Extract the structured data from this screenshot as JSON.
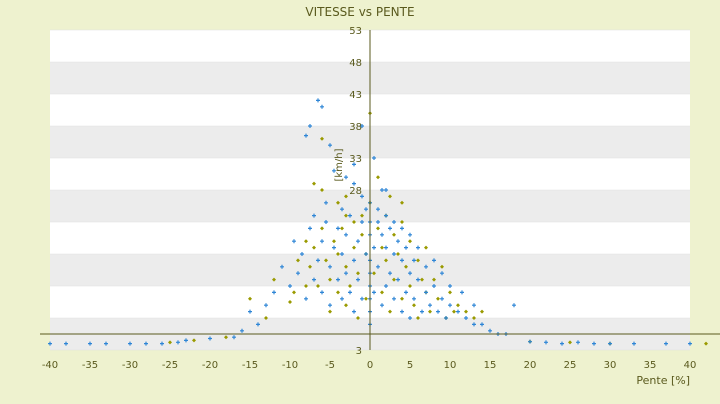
{
  "chart_data": {
    "type": "scatter",
    "title": "VITESSE vs PENTE",
    "xlabel": "Pente [%]",
    "ylabel": "[km/h]",
    "xlim": [
      -40,
      40
    ],
    "ylim": [
      3,
      53
    ],
    "x_ticks": [
      -40,
      -35,
      -30,
      -25,
      -20,
      -15,
      -10,
      -5,
      0,
      5,
      10,
      15,
      20,
      25,
      30,
      35,
      40
    ],
    "y_ticks": [
      3,
      8,
      13,
      18,
      23,
      28,
      33,
      38,
      43,
      48,
      53
    ],
    "y_tick_labels": [
      "3",
      "",
      "",
      "",
      "",
      "28",
      "33",
      "38",
      "43",
      "48",
      "53"
    ],
    "grid": "horizontal alternating bands",
    "series": [
      {
        "color": "#9a9a00",
        "marker": "diamond",
        "points": [
          [
            -12,
            14
          ],
          [
            -10,
            10.5
          ],
          [
            -9.5,
            12
          ],
          [
            -9,
            17
          ],
          [
            -8,
            13
          ],
          [
            -8,
            20
          ],
          [
            -7.5,
            16
          ],
          [
            -7,
            19
          ],
          [
            -6.5,
            13
          ],
          [
            -6,
            22
          ],
          [
            -6,
            36
          ],
          [
            -5.5,
            17
          ],
          [
            -5,
            9
          ],
          [
            -5,
            14
          ],
          [
            -4.5,
            20
          ],
          [
            -4,
            12
          ],
          [
            -4,
            18
          ],
          [
            -3.5,
            22
          ],
          [
            -3,
            10
          ],
          [
            -3,
            16
          ],
          [
            -3,
            24
          ],
          [
            -2.5,
            13
          ],
          [
            -2,
            19
          ],
          [
            -2,
            23
          ],
          [
            -1.5,
            8
          ],
          [
            -1.5,
            15
          ],
          [
            -1,
            21
          ],
          [
            -1,
            24
          ],
          [
            -0.5,
            11
          ],
          [
            -0.5,
            18
          ],
          [
            0,
            40
          ],
          [
            0,
            26
          ],
          [
            0.5,
            15
          ],
          [
            1,
            22
          ],
          [
            1,
            30
          ],
          [
            1.5,
            12
          ],
          [
            1.5,
            19
          ],
          [
            2,
            24
          ],
          [
            2,
            17
          ],
          [
            2.5,
            9
          ],
          [
            3,
            21
          ],
          [
            3,
            14
          ],
          [
            3.5,
            18
          ],
          [
            4,
            11
          ],
          [
            4,
            23
          ],
          [
            4.5,
            16
          ],
          [
            5,
            13
          ],
          [
            5,
            20
          ],
          [
            5.5,
            10
          ],
          [
            6,
            17
          ],
          [
            6,
            8
          ],
          [
            6.5,
            14
          ],
          [
            7,
            12
          ],
          [
            7,
            19
          ],
          [
            7.5,
            9
          ],
          [
            8,
            14
          ],
          [
            8.5,
            11
          ],
          [
            9,
            16
          ],
          [
            9.5,
            8
          ],
          [
            10,
            12
          ],
          [
            10.5,
            9
          ],
          [
            11,
            10
          ],
          [
            12,
            9
          ],
          [
            13,
            8
          ],
          [
            14,
            9
          ],
          [
            -15,
            11
          ],
          [
            -13,
            8
          ],
          [
            -18,
            5
          ],
          [
            -22,
            4.5
          ],
          [
            -25,
            4.2
          ],
          [
            20,
            4.3
          ],
          [
            25,
            4.2
          ],
          [
            30,
            4
          ],
          [
            42,
            4
          ],
          [
            -3,
            27
          ],
          [
            -4,
            26
          ],
          [
            2.5,
            27
          ],
          [
            4,
            26
          ],
          [
            -6,
            28
          ],
          [
            -7,
            29
          ]
        ]
      },
      {
        "color": "#2f86d6",
        "marker": "plus",
        "points": [
          [
            -6.5,
            42
          ],
          [
            -6,
            41
          ],
          [
            -7.5,
            38
          ],
          [
            -8,
            36.5
          ],
          [
            -5,
            35
          ],
          [
            -4.5,
            31
          ],
          [
            -3,
            30
          ],
          [
            -2,
            29
          ],
          [
            -1,
            27
          ],
          [
            0,
            26
          ],
          [
            1,
            25
          ],
          [
            2,
            24
          ],
          [
            -3.5,
            25
          ],
          [
            -5.5,
            26
          ],
          [
            3,
            23
          ],
          [
            4,
            22
          ],
          [
            5,
            21
          ],
          [
            -12,
            12
          ],
          [
            -11,
            16
          ],
          [
            -10,
            13
          ],
          [
            -9.5,
            20
          ],
          [
            -9,
            15
          ],
          [
            -8.5,
            18
          ],
          [
            -8,
            11
          ],
          [
            -7.5,
            22
          ],
          [
            -7,
            14
          ],
          [
            -7,
            24
          ],
          [
            -6.5,
            17
          ],
          [
            -6,
            12
          ],
          [
            -6,
            20
          ],
          [
            -5.5,
            23
          ],
          [
            -5,
            16
          ],
          [
            -5,
            10
          ],
          [
            -4.5,
            19
          ],
          [
            -4,
            14
          ],
          [
            -4,
            22
          ],
          [
            -3.5,
            11
          ],
          [
            -3.5,
            18
          ],
          [
            -3,
            15
          ],
          [
            -3,
            21
          ],
          [
            -2.5,
            12
          ],
          [
            -2.5,
            24
          ],
          [
            -2,
            17
          ],
          [
            -2,
            9
          ],
          [
            -1.5,
            20
          ],
          [
            -1.5,
            14
          ],
          [
            -1,
            23
          ],
          [
            -1,
            11
          ],
          [
            -0.5,
            18
          ],
          [
            -0.5,
            25
          ],
          [
            0,
            15
          ],
          [
            0,
            21
          ],
          [
            0.5,
            19
          ],
          [
            0.5,
            12
          ],
          [
            1,
            23
          ],
          [
            1,
            16
          ],
          [
            1.5,
            21
          ],
          [
            1.5,
            10
          ],
          [
            2,
            19
          ],
          [
            2,
            13
          ],
          [
            2.5,
            22
          ],
          [
            2.5,
            15
          ],
          [
            3,
            18
          ],
          [
            3,
            11
          ],
          [
            3.5,
            20
          ],
          [
            3.5,
            14
          ],
          [
            4,
            17
          ],
          [
            4,
            9
          ],
          [
            4.5,
            19
          ],
          [
            4.5,
            12
          ],
          [
            5,
            15
          ],
          [
            5,
            8
          ],
          [
            5.5,
            17
          ],
          [
            5.5,
            11
          ],
          [
            6,
            14
          ],
          [
            6,
            19
          ],
          [
            6.5,
            9
          ],
          [
            7,
            16
          ],
          [
            7,
            12
          ],
          [
            7.5,
            10
          ],
          [
            8,
            13
          ],
          [
            8,
            17
          ],
          [
            8.5,
            9
          ],
          [
            9,
            11
          ],
          [
            9,
            15
          ],
          [
            9.5,
            8
          ],
          [
            10,
            10
          ],
          [
            10,
            13
          ],
          [
            11,
            9
          ],
          [
            11.5,
            12
          ],
          [
            12,
            8
          ],
          [
            13,
            7
          ],
          [
            13,
            10
          ],
          [
            14,
            7
          ],
          [
            15,
            6
          ],
          [
            16,
            5.5
          ],
          [
            17,
            5.5
          ],
          [
            18,
            10
          ],
          [
            -15,
            9
          ],
          [
            -14,
            7
          ],
          [
            -16,
            6
          ],
          [
            -13,
            10
          ],
          [
            -1,
            38
          ],
          [
            0.5,
            33
          ],
          [
            1.5,
            28
          ],
          [
            -2,
            32
          ],
          [
            2,
            28
          ],
          [
            -17,
            5
          ],
          [
            -20,
            4.8
          ],
          [
            -23,
            4.5
          ],
          [
            -40,
            4
          ],
          [
            -38,
            4
          ],
          [
            -35,
            4
          ],
          [
            -33,
            4
          ],
          [
            -30,
            4
          ],
          [
            -28,
            4
          ],
          [
            -26,
            4
          ],
          [
            -24,
            4.2
          ],
          [
            20,
            4.3
          ],
          [
            22,
            4.2
          ],
          [
            24,
            4
          ],
          [
            26,
            4.2
          ],
          [
            28,
            4
          ],
          [
            30,
            4
          ],
          [
            33,
            4
          ],
          [
            37,
            4
          ],
          [
            40,
            4
          ],
          [
            0,
            7
          ],
          [
            0,
            9
          ],
          [
            0,
            11
          ],
          [
            0,
            13
          ],
          [
            0,
            17
          ],
          [
            0,
            23
          ]
        ]
      }
    ]
  }
}
